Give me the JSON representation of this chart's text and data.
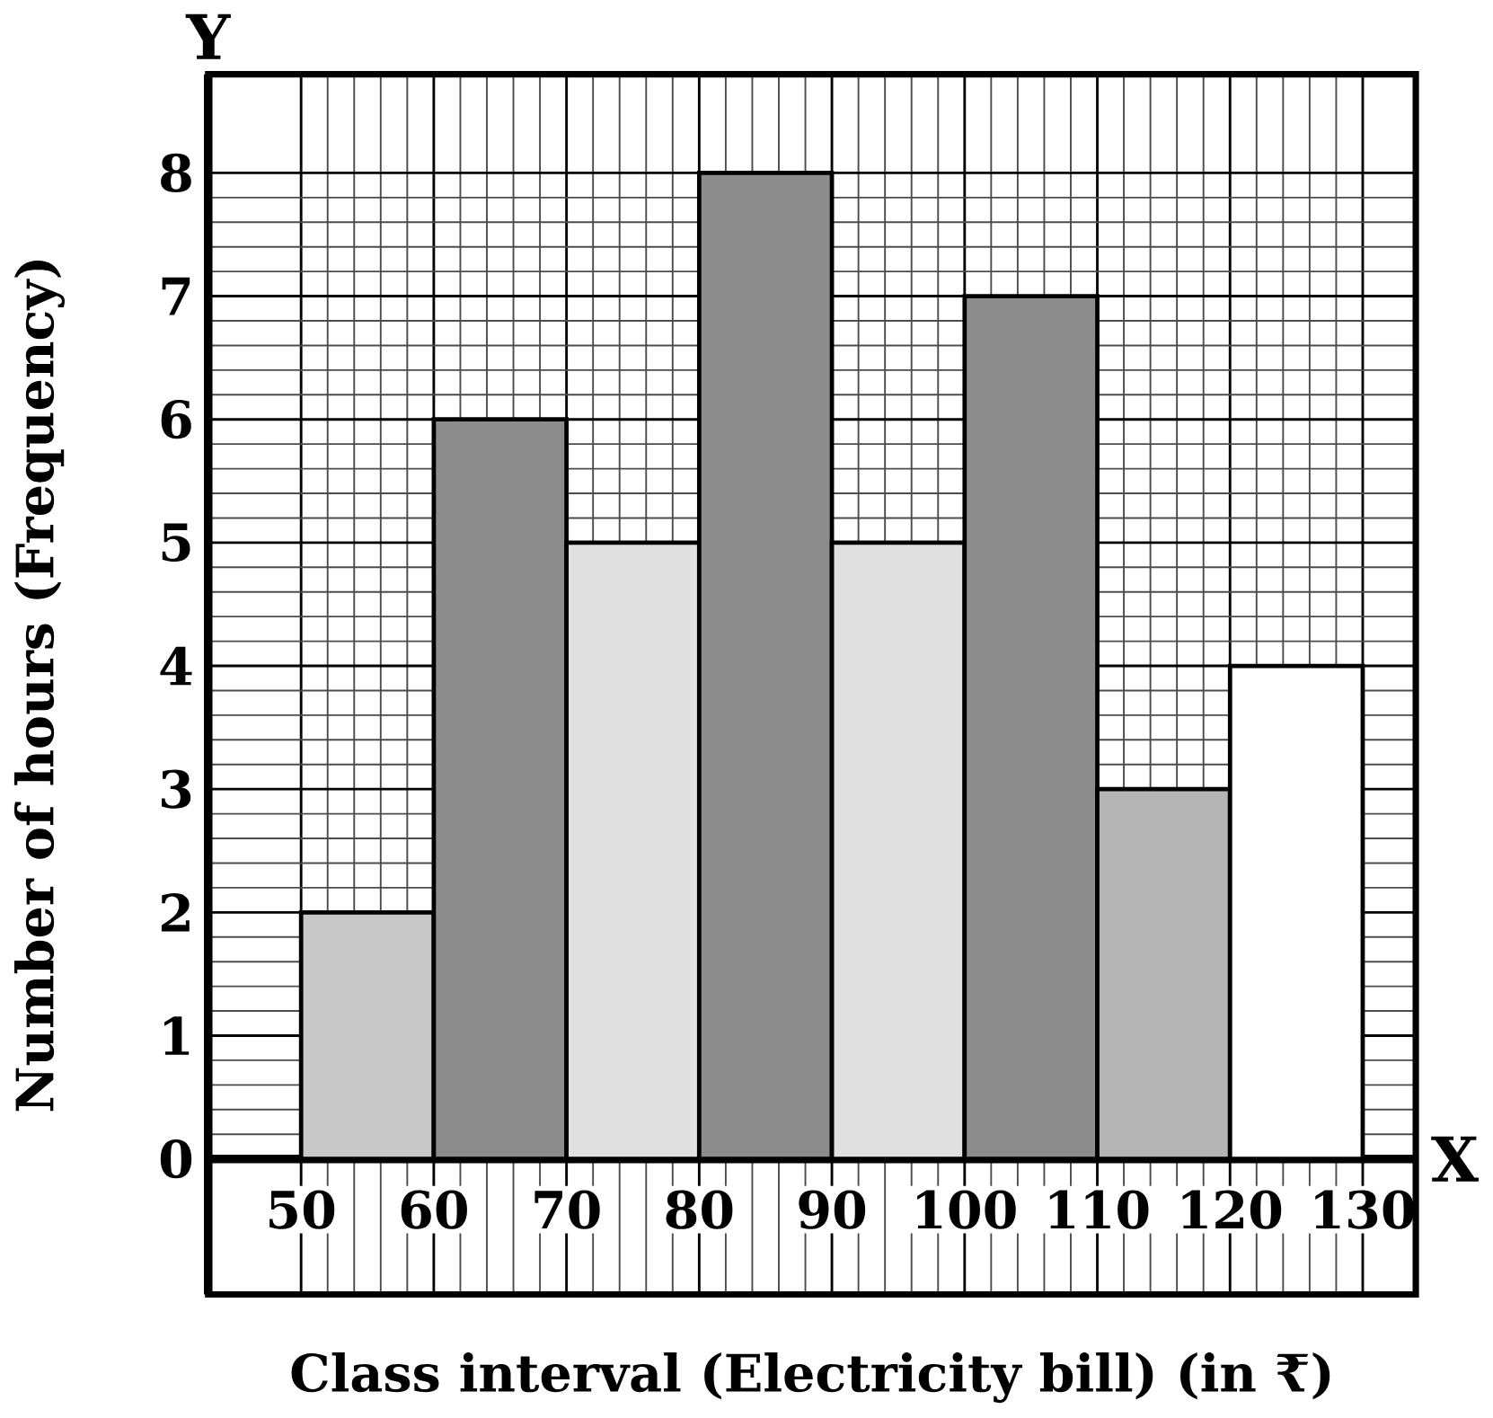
{
  "chart_data": {
    "type": "histogram",
    "xlabel": "Class interval (Electricity bill) (in ₹)",
    "ylabel": "Number of hours (Frequency)",
    "bins": [
      50,
      60,
      70,
      80,
      90,
      100,
      110,
      120,
      130
    ],
    "values": [
      2,
      6,
      5,
      8,
      5,
      7,
      3,
      4
    ],
    "colors": [
      "#c8c8c8",
      "#8c8c8c",
      "#e0e0e0",
      "#8c8c8c",
      "#e0e0e0",
      "#8c8c8c",
      "#b4b4b4",
      "#ffffff"
    ],
    "xlim": [
      43,
      134
    ],
    "ylim": [
      -1.1,
      8.8
    ],
    "xticks": [
      50,
      60,
      70,
      80,
      90,
      100,
      110,
      120,
      130
    ],
    "yticks": [
      0,
      1,
      2,
      3,
      4,
      5,
      6,
      7,
      8
    ],
    "grid": true,
    "annotations": [
      "Y",
      "X"
    ]
  }
}
